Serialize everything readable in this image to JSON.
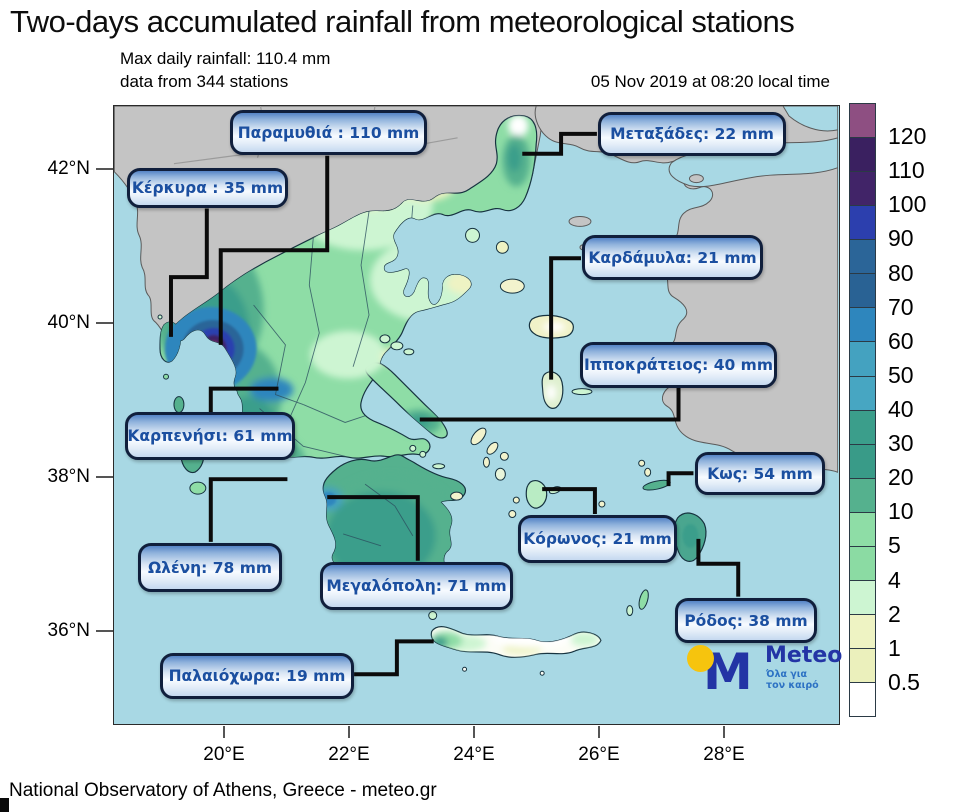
{
  "title": "Two-days accumulated rainfall from meteorological stations",
  "subtitle": {
    "line1": "Max daily rainfall: 110.4 mm",
    "line2": "data from 344 stations",
    "datetime": "05 Nov 2019 at 08:20 local time"
  },
  "footer": "National Observatory of Athens, Greece - meteo.gr",
  "logo": {
    "brand": "Meteo",
    "monogram": "M",
    "tagline_line1": "Όλα για",
    "tagline_line2": "τον καιρό"
  },
  "axes": {
    "lat": [
      "42°N",
      "40°N",
      "38°N",
      "36°N"
    ],
    "lon": [
      "20°E",
      "22°E",
      "24°E",
      "26°E",
      "28°E"
    ]
  },
  "legend": {
    "labels": [
      "120",
      "110",
      "100",
      "90",
      "80",
      "70",
      "60",
      "50",
      "40",
      "30",
      "20",
      "10",
      "5",
      "4",
      "2",
      "1",
      "0.5"
    ],
    "colors": [
      "#8e4f82",
      "#3a2060",
      "#412468",
      "#2c3fae",
      "#2b6598",
      "#296294",
      "#2e86bd",
      "#44a2c0",
      "#47a6c2",
      "#3b9e8b",
      "#399b88",
      "#55b18e",
      "#8edda6",
      "#8bdba3",
      "#cdf5d2",
      "#eef3c3",
      "#ebf0bc",
      "#ffffff"
    ]
  },
  "stations": [
    {
      "label": "Παραμυθιά : 110 mm"
    },
    {
      "label": "Κέρκυρα : 35 mm"
    },
    {
      "label": "Μεταξάδες: 22 mm"
    },
    {
      "label": "Καρδάμυλα: 21 mm"
    },
    {
      "label": "Ιπποκράτειος: 40 mm"
    },
    {
      "label": "Κως: 54 mm"
    },
    {
      "label": "Κόρωνος: 21 mm"
    },
    {
      "label": "Ρόδος: 38 mm"
    },
    {
      "label": "Καρπενήσι: 61 mm"
    },
    {
      "label": "Ωλένη: 78 mm"
    },
    {
      "label": "Μεγαλόπολη: 71 mm"
    },
    {
      "label": "Παλαιόχωρα: 19 mm"
    }
  ],
  "chart_data": {
    "type": "heatmap",
    "subtype": "filled-contour-rainfall-map",
    "region": "Greece",
    "title": "Two-days accumulated rainfall from meteorological stations",
    "timestamp_label": "05 Nov 2019 at 08:20 local time",
    "max_daily_rainfall_mm": 110.4,
    "station_count": 344,
    "legend_levels_mm": [
      0.5,
      1,
      2,
      4,
      5,
      10,
      20,
      30,
      40,
      50,
      60,
      70,
      80,
      90,
      100,
      110,
      120
    ],
    "lat_ticks": [
      "42°N",
      "40°N",
      "38°N",
      "36°N"
    ],
    "lon_ticks": [
      "20°E",
      "22°E",
      "24°E",
      "26°E",
      "28°E"
    ],
    "stations": [
      {
        "name": "Παραμυθιά",
        "value_mm": 110
      },
      {
        "name": "Κέρκυρα",
        "value_mm": 35
      },
      {
        "name": "Μεταξάδες",
        "value_mm": 22
      },
      {
        "name": "Καρδάμυλα",
        "value_mm": 21
      },
      {
        "name": "Ιπποκράτειος",
        "value_mm": 40
      },
      {
        "name": "Κως",
        "value_mm": 54
      },
      {
        "name": "Κόρωνος",
        "value_mm": 21
      },
      {
        "name": "Ρόδος",
        "value_mm": 38
      },
      {
        "name": "Καρπενήσι",
        "value_mm": 61
      },
      {
        "name": "Ωλένη",
        "value_mm": 78
      },
      {
        "name": "Μεγαλόπολη",
        "value_mm": 71
      },
      {
        "name": "Παλαιόχωρα",
        "value_mm": 19
      }
    ],
    "source": "National Observatory of Athens, Greece - meteo.gr"
  }
}
